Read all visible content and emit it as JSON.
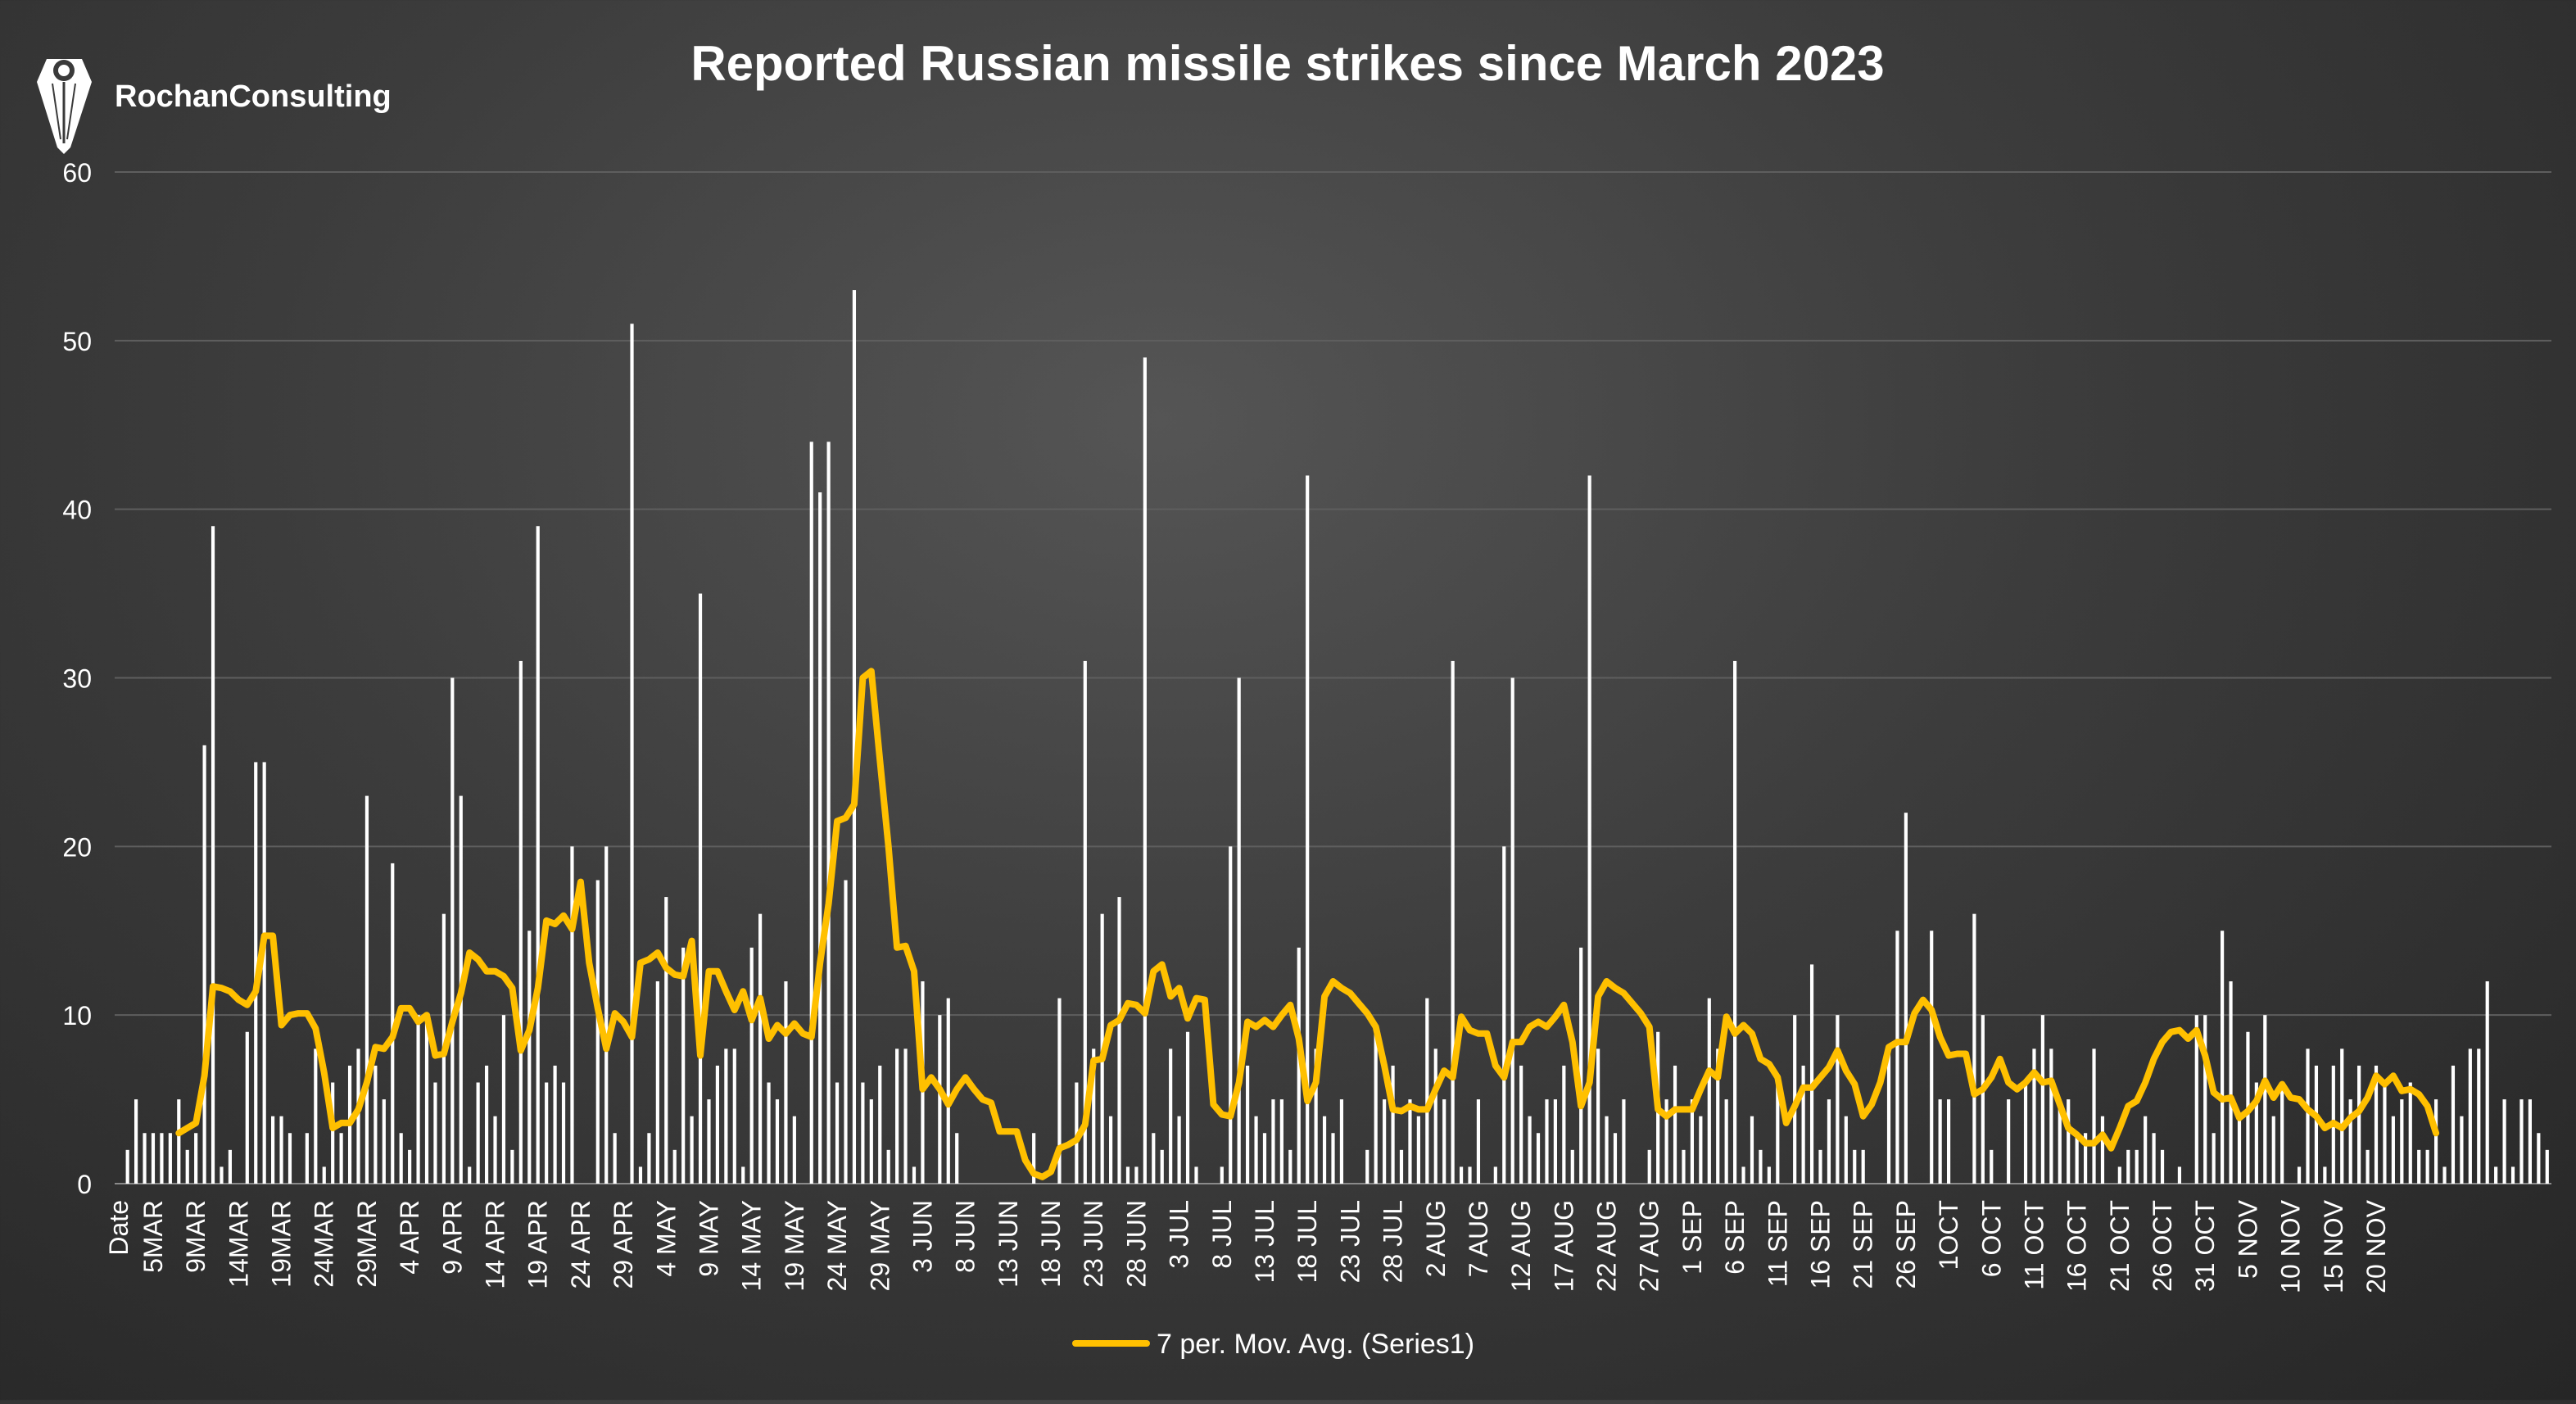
{
  "brand": {
    "name": "RochanConsulting"
  },
  "colors": {
    "background": "#3a3a3a",
    "bars": "#ffffff",
    "moving_average": "#ffc000",
    "text": "#ffffff",
    "gridlines": "#5e5e5e"
  },
  "chart_data": {
    "type": "bar",
    "title": "Reported Russian missile strikes since March 2023",
    "xlabel": "",
    "ylabel": "",
    "ylim": [
      0,
      60
    ],
    "yticks": [
      0,
      10,
      20,
      30,
      40,
      50,
      60
    ],
    "grid": true,
    "legend_position": "bottom",
    "first_category": "Date",
    "x_tick_labels": [
      "5MAR",
      "9MAR",
      "14MAR",
      "19MAR",
      "24MAR",
      "29MAR",
      "4 APR",
      "9 APR",
      "14 APR",
      "19 APR",
      "24 APR",
      "29 APR",
      "4 MAY",
      "9 MAY",
      "14 MAY",
      "19 MAY",
      "24 MAY",
      "29 MAY",
      "3 JUN",
      "8 JUN",
      "13 JUN",
      "18 JUN",
      "23 JUN",
      "28 JUN",
      "3 JUL",
      "8 JUL",
      "13 JUL",
      "18 JUL",
      "23 JUL",
      "28 JUL",
      "2 AUG",
      "7 AUG",
      "12 AUG",
      "17 AUG",
      "22 AUG",
      "27 AUG",
      "1 SEP",
      "6 SEP",
      "11 SEP",
      "16 SEP",
      "21 SEP",
      "26 SEP",
      "1OCT",
      "6 OCT",
      "11 OCT",
      "16 OCT",
      "21 OCT",
      "26 OCT",
      "31 OCT",
      "5 NOV",
      "10 NOV",
      "15 NOV",
      "20 NOV"
    ],
    "series": [
      {
        "type": "bar",
        "values": [
          2,
          5,
          3,
          3,
          3,
          3,
          5,
          2,
          3,
          26,
          39,
          1,
          2,
          0,
          9,
          25,
          25,
          4,
          4,
          3,
          0,
          3,
          8,
          1,
          6,
          3,
          7,
          8,
          23,
          7,
          5,
          19,
          3,
          2,
          10,
          10,
          6,
          16,
          30,
          23,
          1,
          6,
          7,
          4,
          10,
          2,
          31,
          15,
          39,
          6,
          7,
          6,
          20,
          0,
          0,
          18,
          20,
          3,
          0,
          51,
          1,
          3,
          12,
          17,
          2,
          14,
          4,
          35,
          5,
          7,
          8,
          8,
          1,
          14,
          16,
          6,
          5,
          12,
          4,
          0,
          44,
          41,
          44,
          6,
          18,
          53,
          6,
          5,
          7,
          2,
          8,
          8,
          1,
          12,
          0,
          10,
          11,
          3,
          0,
          0,
          0,
          0,
          0,
          0,
          0,
          0,
          3,
          0,
          0,
          11,
          0,
          6,
          31,
          8,
          16,
          4,
          17,
          1,
          1,
          49,
          3,
          2,
          8,
          4,
          9,
          1,
          0,
          0,
          1,
          20,
          30,
          7,
          4,
          3,
          5,
          5,
          2,
          14,
          42,
          8,
          4,
          3,
          5,
          0,
          0,
          2,
          9,
          5,
          7,
          2,
          5,
          4,
          11,
          8,
          5,
          31,
          1,
          1,
          5,
          0,
          1,
          20,
          30,
          7,
          4,
          3,
          5,
          5,
          7,
          2,
          14,
          42,
          8,
          4,
          3,
          5,
          0,
          0,
          2,
          9,
          5,
          7,
          2,
          5,
          4,
          11,
          8,
          5,
          31,
          1,
          4,
          2,
          1,
          6,
          0,
          10,
          7,
          13,
          2,
          5,
          10,
          4,
          2,
          2,
          0,
          0,
          8,
          15,
          22,
          0,
          0,
          15,
          5,
          5,
          0,
          0,
          16,
          10,
          2,
          0,
          5,
          0,
          6,
          8,
          10,
          8,
          5,
          5,
          3,
          3,
          8,
          4,
          0,
          1,
          2,
          2,
          4,
          3,
          2,
          0,
          1,
          0,
          10,
          10,
          3,
          15,
          12,
          4,
          9,
          6,
          10,
          4,
          6,
          0,
          1,
          8,
          7,
          1,
          7,
          8,
          5,
          7,
          2,
          7,
          6,
          4,
          5,
          6,
          2,
          2,
          5,
          1,
          7,
          4,
          8,
          8,
          12,
          1,
          5,
          1,
          5,
          5,
          3,
          2
        ]
      },
      {
        "type": "line",
        "name": "7 per. Mov. Avg. (Series1)",
        "values": [
          null,
          null,
          null,
          null,
          null,
          null,
          3.0,
          3.3,
          3.6,
          6.4,
          11.7,
          11.6,
          11.4,
          10.9,
          10.6,
          11.4,
          14.7,
          14.7,
          9.4,
          10.0,
          10.1,
          10.1,
          9.2,
          6.6,
          3.3,
          3.6,
          3.6,
          4.4,
          6.0,
          8.1,
          8.0,
          8.7,
          10.4,
          10.4,
          9.6,
          10.0,
          7.6,
          7.7,
          9.6,
          11.3,
          13.7,
          13.3,
          12.6,
          12.6,
          12.3,
          11.6,
          7.9,
          9.1,
          11.6,
          15.6,
          15.4,
          15.9,
          15.1,
          17.9,
          13.1,
          10.4,
          8.0,
          10.1,
          9.6,
          8.7,
          13.1,
          13.3,
          13.7,
          12.8,
          12.4,
          12.3,
          14.4,
          7.6,
          12.6,
          12.6,
          11.4,
          10.3,
          11.4,
          9.7,
          11.0,
          8.6,
          9.4,
          8.9,
          9.5,
          8.9,
          8.7,
          13.1,
          16.6,
          21.5,
          21.7,
          22.5,
          30.0,
          30.4,
          25.1,
          20.0,
          14.0,
          14.1,
          12.6,
          5.6,
          6.3,
          5.6,
          4.7,
          5.6,
          6.3,
          5.6,
          5.0,
          4.8,
          3.1,
          3.1,
          3.1,
          1.4,
          0.6,
          0.4,
          0.7,
          2.1,
          2.3,
          2.6,
          3.5,
          7.3,
          7.4,
          9.4,
          9.7,
          10.7,
          10.6,
          10.1,
          12.6,
          13.0,
          11.1,
          11.6,
          9.8,
          11.0,
          10.9,
          4.7,
          4.1,
          4.0,
          6.0,
          9.6,
          9.3,
          9.7,
          9.3,
          10.0,
          10.6,
          8.6,
          4.9,
          6.0,
          11.1,
          12.0,
          11.6,
          11.3,
          10.7,
          10.1,
          9.3,
          7.0,
          4.4,
          4.3,
          4.6,
          4.4,
          4.4,
          5.6,
          6.7,
          6.3,
          9.9,
          9.1,
          8.9,
          8.9,
          7.0,
          6.3,
          8.4,
          8.4,
          9.3,
          9.6,
          9.3,
          9.9,
          10.6,
          8.4,
          4.6,
          6.0,
          11.1,
          12.0,
          11.6,
          11.3,
          10.7,
          10.1,
          9.3,
          4.4,
          4.0,
          4.4,
          4.4,
          4.4,
          5.6,
          6.7,
          6.3,
          9.9,
          8.9,
          9.4,
          8.9,
          7.4,
          7.1,
          6.3,
          3.6,
          4.6,
          5.7,
          5.7,
          6.3,
          6.9,
          7.9,
          6.7,
          5.9,
          4.0,
          4.7,
          6.0,
          8.1,
          8.4,
          8.4,
          10.1,
          10.9,
          10.3,
          8.7,
          7.6,
          7.7,
          7.7,
          5.3,
          5.6,
          6.3,
          7.4,
          6.0,
          5.6,
          6.0,
          6.6,
          6.0,
          6.1,
          4.7,
          3.3,
          2.9,
          2.4,
          2.4,
          2.9,
          2.1,
          3.3,
          4.6,
          4.9,
          6.0,
          7.4,
          8.4,
          9.0,
          9.1,
          8.6,
          9.1,
          7.6,
          5.4,
          5.0,
          5.1,
          3.9,
          4.3,
          4.9,
          6.1,
          5.1,
          5.9,
          5.1,
          5.0,
          4.4,
          4.0,
          3.3,
          3.6,
          3.3,
          3.9,
          4.3,
          5.1,
          6.4,
          5.9,
          6.4,
          5.5,
          5.6,
          5.3,
          4.6,
          3.0
        ]
      }
    ]
  }
}
